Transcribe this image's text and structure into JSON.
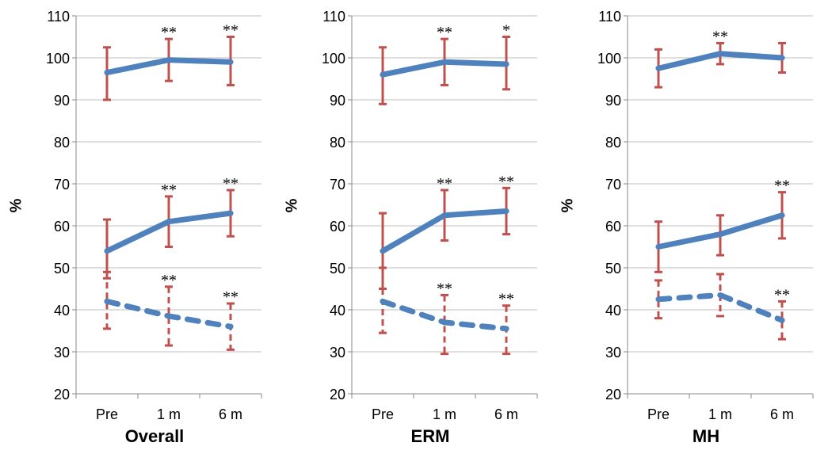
{
  "chart_data": [
    {
      "type": "line",
      "title": "Overall",
      "xlabel": "",
      "ylabel": "%",
      "ylim": [
        20,
        110
      ],
      "yticks": [
        "20",
        "30",
        "40",
        "50",
        "60",
        "70",
        "80",
        "90",
        "100",
        "110"
      ],
      "categories": [
        "Pre",
        "1 m",
        "6 m"
      ],
      "grid": true,
      "series": [
        {
          "style": "solid",
          "color": "#4F81BD",
          "values": [
            96.5,
            99.5,
            99
          ],
          "err_low": [
            90,
            94.5,
            93.5
          ],
          "err_high": [
            102.5,
            104.5,
            105
          ],
          "marks": [
            "",
            "**",
            "**"
          ]
        },
        {
          "style": "solid",
          "color": "#4F81BD",
          "values": [
            54,
            61,
            63
          ],
          "err_low": [
            47.5,
            55,
            57.5
          ],
          "err_high": [
            61.5,
            67,
            68.5
          ],
          "marks": [
            "",
            "**",
            "**"
          ]
        },
        {
          "style": "dashed",
          "color": "#4F81BD",
          "values": [
            42,
            38.5,
            36
          ],
          "err_low": [
            35.5,
            31.5,
            30.5
          ],
          "err_high": [
            49,
            45.5,
            41.5
          ],
          "marks": [
            "",
            "**",
            "**"
          ]
        }
      ]
    },
    {
      "type": "line",
      "title": "ERM",
      "xlabel": "",
      "ylabel": "%",
      "ylim": [
        20,
        110
      ],
      "yticks": [
        "20",
        "30",
        "40",
        "50",
        "60",
        "70",
        "80",
        "90",
        "100",
        "110"
      ],
      "categories": [
        "Pre",
        "1 m",
        "6 m"
      ],
      "grid": true,
      "series": [
        {
          "style": "solid",
          "color": "#4F81BD",
          "values": [
            96,
            99,
            98.5
          ],
          "err_low": [
            89,
            93.5,
            92.5
          ],
          "err_high": [
            102.5,
            104.5,
            105
          ],
          "marks": [
            "",
            "**",
            "*"
          ]
        },
        {
          "style": "solid",
          "color": "#4F81BD",
          "values": [
            54,
            62.5,
            63.5
          ],
          "err_low": [
            45,
            56.5,
            58
          ],
          "err_high": [
            63,
            68.5,
            69
          ],
          "marks": [
            "",
            "**",
            "**"
          ]
        },
        {
          "style": "dashed",
          "color": "#4F81BD",
          "values": [
            42,
            37,
            35.5
          ],
          "err_low": [
            34.5,
            29.5,
            29.5
          ],
          "err_high": [
            50,
            43.5,
            41
          ],
          "marks": [
            "",
            "**",
            "**"
          ]
        }
      ]
    },
    {
      "type": "line",
      "title": "MH",
      "xlabel": "",
      "ylabel": "%",
      "ylim": [
        20,
        110
      ],
      "yticks": [
        "20",
        "30",
        "40",
        "50",
        "60",
        "70",
        "80",
        "90",
        "100",
        "110"
      ],
      "categories": [
        "Pre",
        "1 m",
        "6 m"
      ],
      "grid": true,
      "series": [
        {
          "style": "solid",
          "color": "#4F81BD",
          "values": [
            97.5,
            101,
            100
          ],
          "err_low": [
            93,
            98.5,
            96.5
          ],
          "err_high": [
            102,
            103.5,
            103.5
          ],
          "marks": [
            "",
            "**",
            ""
          ]
        },
        {
          "style": "solid",
          "color": "#4F81BD",
          "values": [
            55,
            58,
            62.5
          ],
          "err_low": [
            49,
            53,
            57
          ],
          "err_high": [
            61,
            62.5,
            68
          ],
          "marks": [
            "",
            "",
            "**"
          ]
        },
        {
          "style": "dashed",
          "color": "#4F81BD",
          "values": [
            42.5,
            43.5,
            37.5
          ],
          "err_low": [
            38,
            38.5,
            33
          ],
          "err_high": [
            47,
            48.5,
            42
          ],
          "marks": [
            "",
            "",
            "**"
          ]
        }
      ]
    }
  ],
  "colors": {
    "line": "#4F81BD",
    "error_bar": "#C0504D",
    "grid": "#BFBFBF",
    "axis": "#888888"
  }
}
